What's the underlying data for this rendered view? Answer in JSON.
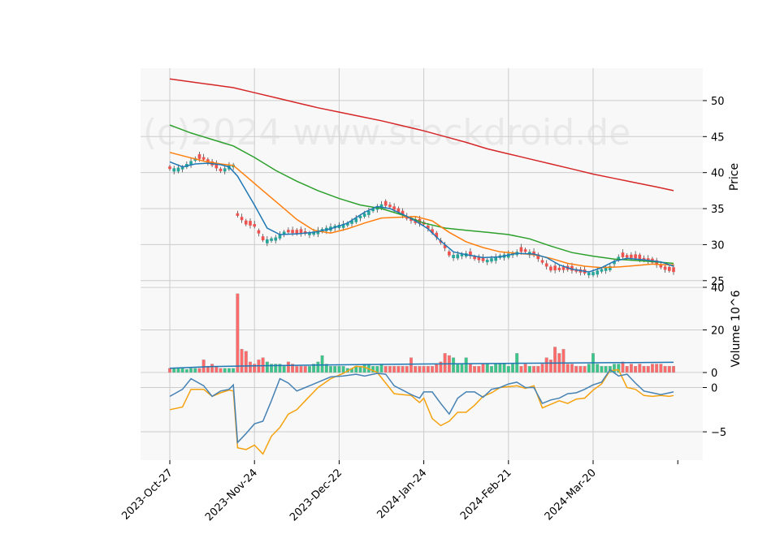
{
  "chart_data": {
    "type": "candlestick",
    "watermark": "(c)2024 www.stockdroid.de",
    "x_tick_labels": [
      "2023-Oct-27",
      "2023-Nov-24",
      "2023-Dec-22",
      "2024-Jan-24",
      "2024-Feb-21",
      "2024-Mar-20"
    ],
    "x_tick_index": [
      0,
      20,
      40,
      60,
      80,
      100
    ],
    "n_days": 120,
    "colors": {
      "up": "#26a69a",
      "down": "#ef5350",
      "up_vol": "#3cc58a",
      "down_vol": "#ff6b6b",
      "line_blue": "#1f77b4",
      "line_orange": "#ff7f0e",
      "line_green": "#2ca02c",
      "line_red": "#d62728",
      "osc_blue": "#4682b4",
      "osc_orange": "#f5a20f",
      "grid": "#cccccc",
      "panel_bg": "#f8f8f8"
    },
    "price_panel": {
      "ylabel": "Price",
      "ylim": [
        24.3,
        54.5
      ],
      "yticks": [
        25,
        30,
        35,
        40,
        45,
        50
      ],
      "close_path": [
        [
          0,
          40.5
        ],
        [
          3,
          40.8
        ],
        [
          6,
          42
        ],
        [
          8,
          41.8
        ],
        [
          10,
          41
        ],
        [
          12,
          40.2
        ],
        [
          14,
          41
        ],
        [
          15,
          41.1
        ],
        [
          16,
          34
        ],
        [
          18,
          32.8
        ],
        [
          20,
          32.5
        ],
        [
          22,
          30.6
        ],
        [
          25,
          31
        ],
        [
          27,
          31.8
        ],
        [
          30,
          31.5
        ],
        [
          32,
          31.5
        ],
        [
          35,
          32
        ],
        [
          38,
          32.5
        ],
        [
          42,
          33
        ],
        [
          45,
          34
        ],
        [
          48,
          35
        ],
        [
          50,
          35.6
        ],
        [
          52,
          35.2
        ],
        [
          54,
          34.5
        ],
        [
          56,
          33.6
        ],
        [
          58,
          33
        ],
        [
          60,
          32.8
        ],
        [
          63,
          31
        ],
        [
          65,
          29.5
        ],
        [
          66,
          28.5
        ],
        [
          70,
          28.8
        ],
        [
          72,
          28
        ],
        [
          74,
          27.7
        ],
        [
          78,
          28.5
        ],
        [
          82,
          29
        ],
        [
          85,
          29
        ],
        [
          88,
          27.5
        ],
        [
          90,
          26.4
        ],
        [
          94,
          26.5
        ],
        [
          98,
          26
        ],
        [
          100,
          26.2
        ],
        [
          104,
          27
        ],
        [
          106,
          28.3
        ],
        [
          110,
          28.1
        ],
        [
          114,
          27.5
        ],
        [
          117,
          26.5
        ],
        [
          119,
          26.2
        ]
      ],
      "sma_blue": [
        [
          0,
          41.5
        ],
        [
          3,
          40.8
        ],
        [
          6,
          41.2
        ],
        [
          9,
          41.3
        ],
        [
          12,
          41.1
        ],
        [
          14,
          40.8
        ],
        [
          16,
          39.5
        ],
        [
          18,
          37.5
        ],
        [
          20,
          35.5
        ],
        [
          23,
          32.3
        ],
        [
          26,
          31.4
        ],
        [
          30,
          31.5
        ],
        [
          34,
          31.7
        ],
        [
          38,
          32.2
        ],
        [
          42,
          33
        ],
        [
          46,
          34.5
        ],
        [
          49,
          35.3
        ],
        [
          52,
          35
        ],
        [
          55,
          34.2
        ],
        [
          58,
          33.3
        ],
        [
          61,
          32.2
        ],
        [
          64,
          30.5
        ],
        [
          67,
          29
        ],
        [
          70,
          28.6
        ],
        [
          74,
          28.2
        ],
        [
          78,
          28.3
        ],
        [
          82,
          28.8
        ],
        [
          86,
          28.7
        ],
        [
          89,
          28.2
        ],
        [
          92,
          27.2
        ],
        [
          95,
          26.6
        ],
        [
          99,
          26.2
        ],
        [
          102,
          26.8
        ],
        [
          105,
          27.7
        ],
        [
          108,
          28.1
        ],
        [
          112,
          27.9
        ],
        [
          116,
          27.6
        ],
        [
          119,
          27
        ]
      ],
      "sma_orange": [
        [
          0,
          42.8
        ],
        [
          4,
          42.2
        ],
        [
          8,
          41.6
        ],
        [
          12,
          41.2
        ],
        [
          15,
          41
        ],
        [
          18,
          39.5
        ],
        [
          22,
          37.5
        ],
        [
          26,
          35.5
        ],
        [
          30,
          33.5
        ],
        [
          34,
          32
        ],
        [
          38,
          31.6
        ],
        [
          42,
          32.2
        ],
        [
          46,
          33
        ],
        [
          50,
          33.7
        ],
        [
          54,
          33.8
        ],
        [
          58,
          33.9
        ],
        [
          62,
          33.3
        ],
        [
          66,
          31.7
        ],
        [
          70,
          30.4
        ],
        [
          74,
          29.6
        ],
        [
          78,
          29
        ],
        [
          82,
          28.8
        ],
        [
          86,
          28.6
        ],
        [
          90,
          28.1
        ],
        [
          94,
          27.4
        ],
        [
          98,
          27
        ],
        [
          102,
          26.8
        ],
        [
          106,
          26.9
        ],
        [
          110,
          27.1
        ],
        [
          114,
          27.3
        ],
        [
          117,
          27.2
        ],
        [
          119,
          27.2
        ]
      ],
      "sma_green": [
        [
          0,
          46.6
        ],
        [
          5,
          45.5
        ],
        [
          10,
          44.6
        ],
        [
          15,
          43.7
        ],
        [
          20,
          42.1
        ],
        [
          25,
          40.3
        ],
        [
          30,
          38.8
        ],
        [
          35,
          37.5
        ],
        [
          40,
          36.4
        ],
        [
          45,
          35.5
        ],
        [
          50,
          35
        ],
        [
          55,
          34.1
        ],
        [
          60,
          33
        ],
        [
          65,
          32.3
        ],
        [
          70,
          32
        ],
        [
          75,
          31.7
        ],
        [
          80,
          31.4
        ],
        [
          85,
          30.8
        ],
        [
          90,
          29.8
        ],
        [
          95,
          28.9
        ],
        [
          100,
          28.4
        ],
        [
          105,
          28
        ],
        [
          110,
          27.8
        ],
        [
          115,
          27.6
        ],
        [
          119,
          27.4
        ]
      ],
      "sma_red": [
        [
          0,
          53
        ],
        [
          5,
          52.6
        ],
        [
          10,
          52.2
        ],
        [
          15,
          51.8
        ],
        [
          20,
          51.1
        ],
        [
          25,
          50.4
        ],
        [
          30,
          49.7
        ],
        [
          35,
          49
        ],
        [
          40,
          48.4
        ],
        [
          45,
          47.8
        ],
        [
          50,
          47.2
        ],
        [
          55,
          46.5
        ],
        [
          60,
          45.8
        ],
        [
          65,
          45
        ],
        [
          70,
          44.2
        ],
        [
          75,
          43.3
        ],
        [
          80,
          42.6
        ],
        [
          85,
          41.9
        ],
        [
          90,
          41.2
        ],
        [
          95,
          40.5
        ],
        [
          100,
          39.8
        ],
        [
          105,
          39.2
        ],
        [
          110,
          38.6
        ],
        [
          115,
          38
        ],
        [
          119,
          37.5
        ]
      ]
    },
    "volume_panel": {
      "ylabel": "Volume  10^6",
      "ylim": [
        0,
        40
      ],
      "yticks": [
        0,
        20,
        40
      ],
      "values": [
        2,
        2,
        2,
        2,
        1.5,
        2,
        2,
        2,
        6,
        3,
        4,
        3,
        2,
        2,
        2,
        2,
        37,
        11,
        10,
        5,
        4,
        6,
        7,
        5,
        4,
        4,
        4,
        3,
        5,
        4,
        3,
        3,
        3,
        3,
        4,
        5,
        8,
        4,
        3,
        3,
        3,
        3,
        2,
        2,
        3,
        3,
        4,
        4,
        3,
        3,
        4,
        3,
        3,
        3,
        3,
        3,
        3,
        7,
        3,
        3,
        3,
        3,
        3,
        4,
        5,
        9,
        8,
        7,
        4,
        4,
        7,
        4,
        3,
        3,
        4,
        4,
        3,
        4,
        4,
        4,
        3,
        4,
        9,
        3,
        4,
        3,
        3,
        3,
        4,
        7,
        6,
        12,
        9,
        11,
        4,
        4,
        3,
        3,
        3,
        4,
        9,
        4,
        3,
        3,
        3,
        4,
        4,
        5,
        3,
        4,
        3,
        4,
        3,
        3,
        4,
        4,
        4,
        3,
        3,
        3
      ],
      "avg_start": 2,
      "avg_end": 4.8
    },
    "osc_panel": {
      "ylim": [
        -8.2,
        1.6
      ],
      "yticks": [
        -5,
        0
      ],
      "blue": [
        [
          0,
          -1
        ],
        [
          3,
          -0.2
        ],
        [
          5,
          1
        ],
        [
          8,
          0.2
        ],
        [
          10,
          -1
        ],
        [
          12,
          -0.4
        ],
        [
          14,
          -0.2
        ],
        [
          15,
          0.3
        ],
        [
          16,
          -6.2
        ],
        [
          18,
          -5.2
        ],
        [
          20,
          -4.1
        ],
        [
          22,
          -3.8
        ],
        [
          24,
          -1.5
        ],
        [
          26,
          1
        ],
        [
          28,
          0.5
        ],
        [
          30,
          -0.4
        ],
        [
          32,
          0
        ],
        [
          35,
          0.6
        ],
        [
          38,
          1.2
        ],
        [
          41,
          1.3
        ],
        [
          44,
          1.5
        ],
        [
          46,
          1.3
        ],
        [
          49,
          1.6
        ],
        [
          51,
          1.5
        ],
        [
          53,
          0.2
        ],
        [
          55,
          -0.3
        ],
        [
          57,
          -0.8
        ],
        [
          59,
          -1.2
        ],
        [
          60,
          -0.5
        ],
        [
          62,
          -0.5
        ],
        [
          64,
          -1.8
        ],
        [
          66,
          -3
        ],
        [
          68,
          -1.2
        ],
        [
          70,
          -0.5
        ],
        [
          72,
          -0.5
        ],
        [
          74,
          -1.1
        ],
        [
          76,
          -0.2
        ],
        [
          78,
          0
        ],
        [
          80,
          0.4
        ],
        [
          82,
          0.6
        ],
        [
          84,
          0
        ],
        [
          86,
          0
        ],
        [
          88,
          -1.8
        ],
        [
          90,
          -1.4
        ],
        [
          92,
          -1.2
        ],
        [
          94,
          -0.7
        ],
        [
          96,
          -0.6
        ],
        [
          98,
          -0.2
        ],
        [
          100,
          0.3
        ],
        [
          102,
          0.6
        ],
        [
          104,
          2
        ],
        [
          106,
          1.3
        ],
        [
          108,
          1.5
        ],
        [
          110,
          0.5
        ],
        [
          112,
          -0.4
        ],
        [
          114,
          -0.6
        ],
        [
          116,
          -0.8
        ],
        [
          118,
          -0.6
        ],
        [
          119,
          -0.5
        ]
      ],
      "orange": [
        [
          0,
          -2.5
        ],
        [
          3,
          -2.2
        ],
        [
          5,
          -0.2
        ],
        [
          8,
          -0.2
        ],
        [
          10,
          -1
        ],
        [
          12,
          -0.6
        ],
        [
          14,
          -0.3
        ],
        [
          15,
          -0.4
        ],
        [
          16,
          -6.8
        ],
        [
          18,
          -7
        ],
        [
          20,
          -6.5
        ],
        [
          22,
          -7.5
        ],
        [
          24,
          -5.5
        ],
        [
          26,
          -4.5
        ],
        [
          28,
          -3
        ],
        [
          30,
          -2.5
        ],
        [
          32,
          -1.5
        ],
        [
          35,
          0
        ],
        [
          38,
          1
        ],
        [
          41,
          1.6
        ],
        [
          44,
          2.4
        ],
        [
          46,
          2.3
        ],
        [
          49,
          1.7
        ],
        [
          51,
          0.5
        ],
        [
          53,
          -0.7
        ],
        [
          55,
          -0.8
        ],
        [
          57,
          -0.9
        ],
        [
          59,
          -1.7
        ],
        [
          60,
          -1.2
        ],
        [
          62,
          -3.5
        ],
        [
          64,
          -4.3
        ],
        [
          66,
          -3.8
        ],
        [
          68,
          -2.8
        ],
        [
          70,
          -2.8
        ],
        [
          72,
          -2
        ],
        [
          74,
          -1
        ],
        [
          76,
          -0.6
        ],
        [
          78,
          0
        ],
        [
          80,
          0.1
        ],
        [
          82,
          0.2
        ],
        [
          84,
          -0.1
        ],
        [
          86,
          0.2
        ],
        [
          88,
          -2.3
        ],
        [
          90,
          -1.9
        ],
        [
          92,
          -1.5
        ],
        [
          94,
          -1.8
        ],
        [
          96,
          -1.3
        ],
        [
          98,
          -1.2
        ],
        [
          100,
          -0.3
        ],
        [
          102,
          0.4
        ],
        [
          104,
          1.9
        ],
        [
          106,
          2
        ],
        [
          108,
          0
        ],
        [
          110,
          -0.2
        ],
        [
          112,
          -0.9
        ],
        [
          114,
          -1
        ],
        [
          116,
          -0.9
        ],
        [
          118,
          -1
        ],
        [
          119,
          -0.9
        ]
      ]
    }
  }
}
